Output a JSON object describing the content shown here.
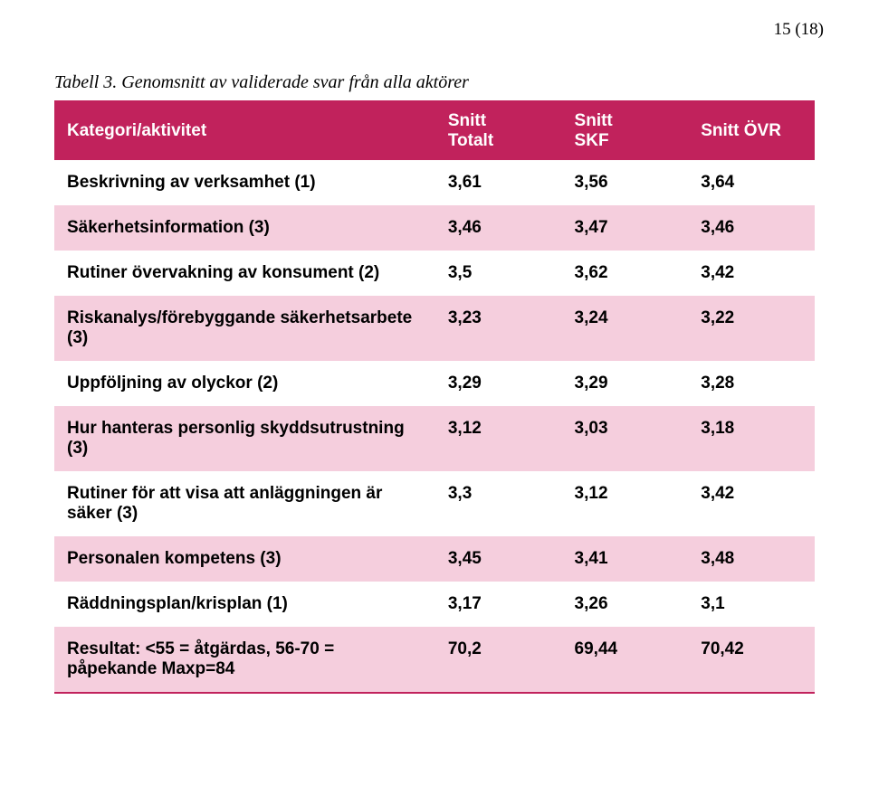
{
  "page_number": "15 (18)",
  "caption": "Tabell 3. Genomsnitt av validerade svar från alla aktörer",
  "table": {
    "headers": {
      "col0": "Kategori/aktivitet",
      "col1": "Snitt\nTotalt",
      "col2": "Snitt\nSKF",
      "col3": "Snitt ÖVR"
    },
    "rows": [
      {
        "label": "Beskrivning av verksamhet (1)",
        "v1": "3,61",
        "v2": "3,56",
        "v3": "3,64"
      },
      {
        "label": "Säkerhetsinformation (3)",
        "v1": "3,46",
        "v2": "3,47",
        "v3": "3,46"
      },
      {
        "label": "Rutiner övervakning av konsument (2)",
        "v1": "3,5",
        "v2": "3,62",
        "v3": "3,42"
      },
      {
        "label": "Riskanalys/förebyggande säkerhetsarbete (3)",
        "v1": "3,23",
        "v2": "3,24",
        "v3": "3,22"
      },
      {
        "label": "Uppföljning av olyckor (2)",
        "v1": "3,29",
        "v2": "3,29",
        "v3": "3,28"
      },
      {
        "label": "Hur hanteras personlig skyddsutrustning (3)",
        "v1": "3,12",
        "v2": "3,03",
        "v3": "3,18"
      },
      {
        "label": "Rutiner för att visa att anläggningen är säker (3)",
        "v1": "3,3",
        "v2": "3,12",
        "v3": "3,42"
      },
      {
        "label": "Personalen kompetens (3)",
        "v1": "3,45",
        "v2": "3,41",
        "v3": "3,48"
      },
      {
        "label": "Räddningsplan/krisplan (1)",
        "v1": "3,17",
        "v2": "3,26",
        "v3": "3,1"
      },
      {
        "label": "Resultat: <55 = åtgärdas, 56-70 = påpekande Maxp=84",
        "v1": "70,2",
        "v2": "69,44",
        "v3": "70,42"
      }
    ]
  },
  "style": {
    "header_bg": "#c1225c",
    "header_fg": "#ffffff",
    "row_odd_bg": "#ffffff",
    "row_even_bg": "#f5cedd",
    "text_color": "#000000",
    "border_color": "#c1225c",
    "body_fontsize": 19,
    "header_fontsize": 19,
    "caption_fontsize": 20
  }
}
